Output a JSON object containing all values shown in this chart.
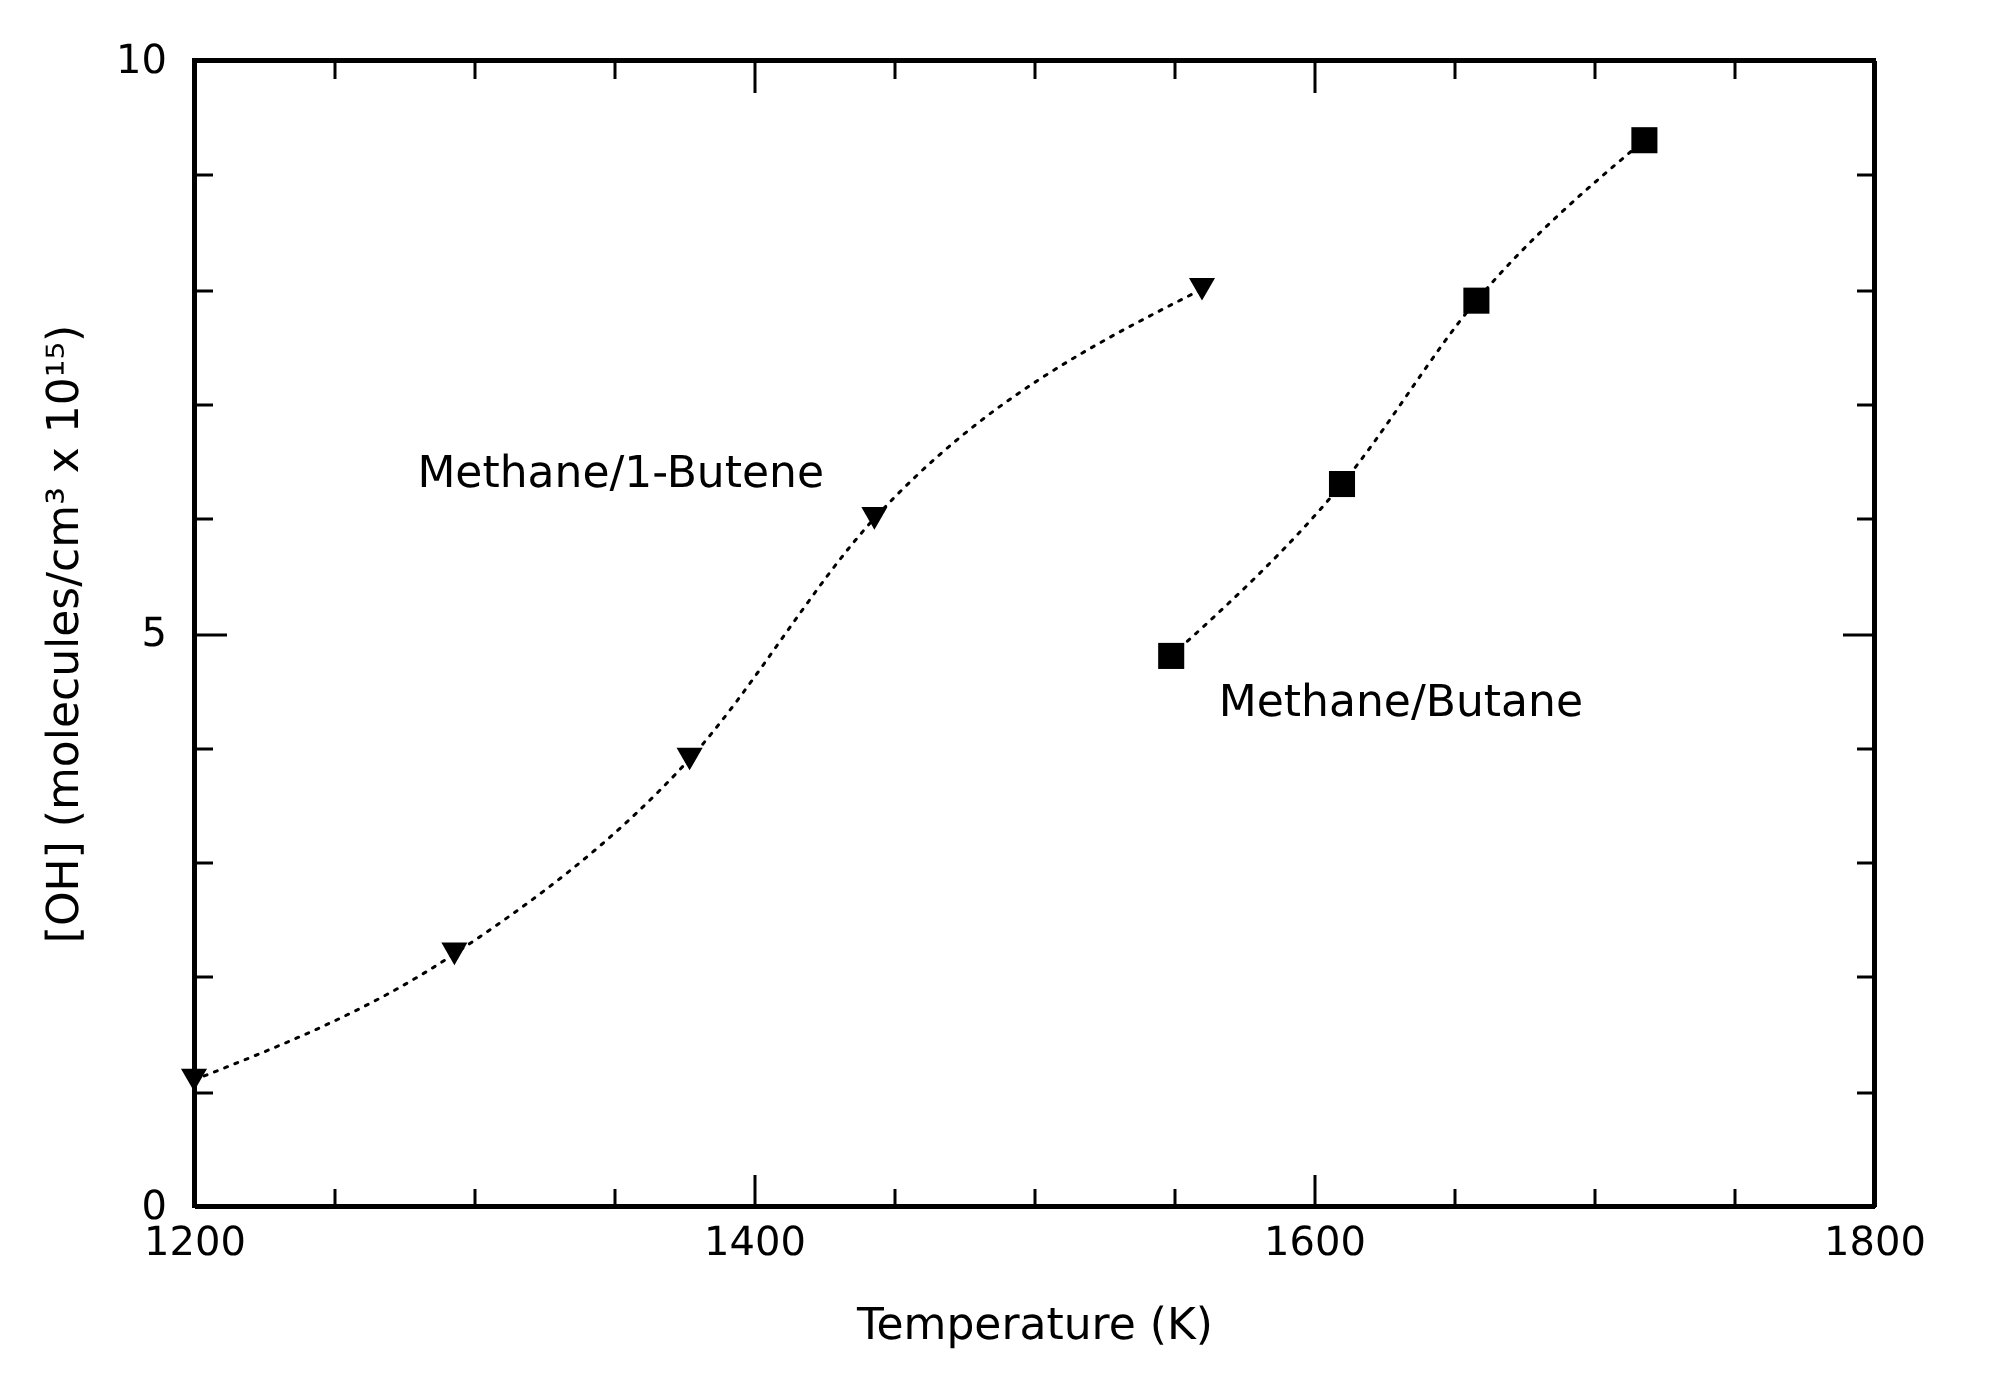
{
  "chart_data": {
    "type": "line",
    "xlabel": "Temperature (K)",
    "ylabel": "[OH] (molecules/cm³ x 10¹⁵)",
    "xlim": [
      1200,
      1800
    ],
    "ylim": [
      0,
      10
    ],
    "xticks": [
      1200,
      {
        "value": 1250,
        "label": null
      },
      {
        "value": 1300,
        "label": null
      },
      {
        "value": 1350,
        "label": null
      },
      1400,
      {
        "value": 1450,
        "label": null
      },
      {
        "value": 1500,
        "label": null
      },
      {
        "value": 1550,
        "label": null
      },
      1600,
      {
        "value": 1650,
        "label": null
      },
      {
        "value": 1700,
        "label": null
      },
      {
        "value": 1750,
        "label": null
      },
      1800
    ],
    "yticks": [
      0,
      {
        "value": 1,
        "label": null
      },
      {
        "value": 2,
        "label": null
      },
      {
        "value": 3,
        "label": null
      },
      {
        "value": 4,
        "label": null
      },
      5,
      {
        "value": 6,
        "label": null
      },
      {
        "value": 7,
        "label": null
      },
      {
        "value": 8,
        "label": null
      },
      {
        "value": 9,
        "label": null
      },
      10
    ],
    "grid": false,
    "line_style": "dotted",
    "series": [
      {
        "name": "Methane/1-Butene",
        "color": "#000000",
        "marker": "triangle",
        "x": [
          1200,
          1293,
          1377,
          1443,
          1560
        ],
        "values": [
          1.1,
          2.2,
          3.9,
          6.0,
          8.0
        ]
      },
      {
        "name": "Methane/Butane",
        "color": "#000000",
        "marker": "square",
        "x": [
          1549,
          1610,
          1658,
          1718
        ],
        "values": [
          4.8,
          6.3,
          7.9,
          9.3
        ]
      }
    ]
  }
}
